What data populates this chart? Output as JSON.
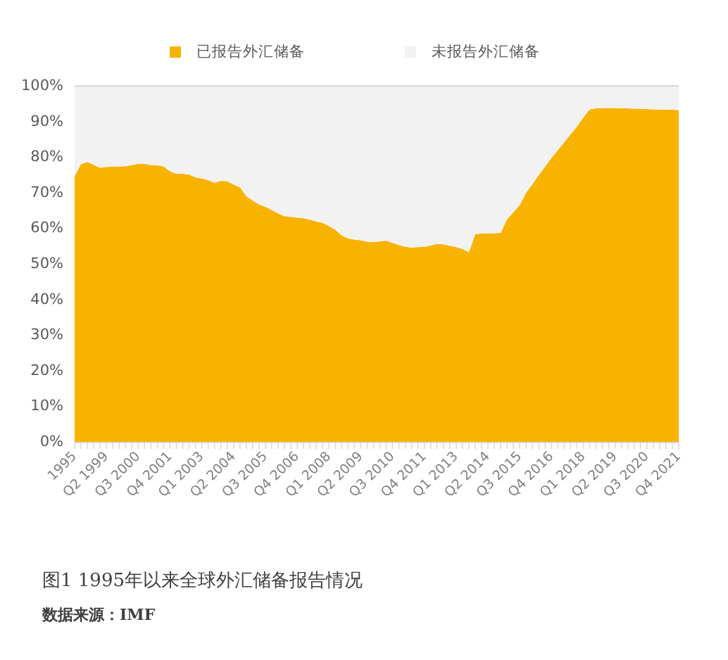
{
  "chart_data": {
    "type": "area",
    "stacked": true,
    "legend": "top",
    "categories": [
      "1995",
      null,
      null,
      null,
      null,
      "Q2 1999",
      null,
      null,
      null,
      null,
      "Q3 2000",
      null,
      null,
      null,
      null,
      "Q4 2001",
      null,
      null,
      null,
      null,
      "Q1 2003",
      null,
      null,
      null,
      null,
      "Q2 2004",
      null,
      null,
      null,
      null,
      "Q3 2005",
      null,
      null,
      null,
      null,
      "Q4 2006",
      null,
      null,
      null,
      null,
      "Q1 2008",
      null,
      null,
      null,
      null,
      "Q2 2009",
      null,
      null,
      null,
      null,
      "Q3 2010",
      null,
      null,
      null,
      null,
      "Q4 2011",
      null,
      null,
      null,
      null,
      "Q1 2013",
      null,
      null,
      null,
      null,
      "Q2 2014",
      null,
      null,
      null,
      null,
      "Q3 2015",
      null,
      null,
      null,
      null,
      "Q4 2016",
      null,
      null,
      null,
      null,
      "Q1 2018",
      null,
      null,
      null,
      null,
      "Q2 2019",
      null,
      null,
      null,
      null,
      "Q3 2020",
      null,
      null,
      null,
      null,
      "Q4 2021"
    ],
    "series": [
      {
        "name": "已报告外汇储备",
        "color": "#f8b300",
        "values": [
          74.6,
          78.0,
          78.6,
          77.8,
          77.0,
          77.2,
          77.3,
          77.3,
          77.4,
          77.7,
          78.1,
          78.1,
          77.7,
          77.7,
          77.3,
          76.0,
          75.3,
          75.3,
          75.1,
          74.3,
          74.0,
          73.5,
          72.8,
          73.3,
          73.2,
          72.3,
          71.5,
          69.0,
          67.8,
          66.7,
          66.0,
          65.1,
          64.2,
          63.4,
          63.2,
          63.0,
          62.8,
          62.4,
          61.9,
          61.5,
          60.6,
          59.6,
          58.0,
          57.1,
          56.8,
          56.6,
          56.2,
          56.1,
          56.3,
          56.5,
          55.9,
          55.3,
          54.8,
          54.6,
          54.7,
          54.8,
          55.2,
          55.6,
          55.5,
          55.1,
          54.7,
          54.2,
          53.2,
          58.4,
          58.5,
          58.6,
          58.6,
          58.7,
          62.5,
          64.5,
          66.5,
          70.0,
          72.4,
          75.0,
          77.3,
          79.8,
          81.9,
          84.2,
          86.4,
          88.6,
          91.1,
          93.4,
          93.7,
          93.8,
          93.8,
          93.8,
          93.7,
          93.7,
          93.6,
          93.6,
          93.5,
          93.4,
          93.4,
          93.3,
          93.3,
          93.2
        ]
      },
      {
        "name": "未报告外汇储备",
        "color": "#f2f2f2",
        "values": [
          25.4,
          22.0,
          21.4,
          22.2,
          23.0,
          22.8,
          22.7,
          22.7,
          22.6,
          22.3,
          21.9,
          21.9,
          22.3,
          22.3,
          22.7,
          24.0,
          24.7,
          24.7,
          24.9,
          25.7,
          26.0,
          26.5,
          27.2,
          26.7,
          26.8,
          27.7,
          28.5,
          31.0,
          32.2,
          33.3,
          34.0,
          34.9,
          35.8,
          36.6,
          36.8,
          37.0,
          37.2,
          37.6,
          38.1,
          38.5,
          39.4,
          40.4,
          42.0,
          42.9,
          43.2,
          43.4,
          43.8,
          43.9,
          43.7,
          43.5,
          44.1,
          44.7,
          45.2,
          45.4,
          45.3,
          45.2,
          44.8,
          44.4,
          44.5,
          44.9,
          45.3,
          45.8,
          46.8,
          41.6,
          41.5,
          41.4,
          41.4,
          41.3,
          37.5,
          35.5,
          33.5,
          30.0,
          27.6,
          25.0,
          22.7,
          20.2,
          18.1,
          15.8,
          13.6,
          11.4,
          8.9,
          6.6,
          6.3,
          6.2,
          6.2,
          6.2,
          6.3,
          6.3,
          6.4,
          6.4,
          6.5,
          6.6,
          6.6,
          6.7,
          6.7,
          6.8
        ]
      }
    ],
    "ylim": [
      0,
      100
    ],
    "yticks": [
      {
        "value": 0,
        "label": "0%"
      },
      {
        "value": 10,
        "label": "10%"
      },
      {
        "value": 20,
        "label": "20%"
      },
      {
        "value": 30,
        "label": "30%"
      },
      {
        "value": 40,
        "label": "40%"
      },
      {
        "value": 50,
        "label": "50%"
      },
      {
        "value": 60,
        "label": "60%"
      },
      {
        "value": 70,
        "label": "70%"
      },
      {
        "value": 80,
        "label": "80%"
      },
      {
        "value": 90,
        "label": "90%"
      },
      {
        "value": 100,
        "label": "100%"
      }
    ],
    "annotations": [
      "图1 1995年以来全球外汇储备报告情况",
      "数据来源：IMF"
    ]
  }
}
